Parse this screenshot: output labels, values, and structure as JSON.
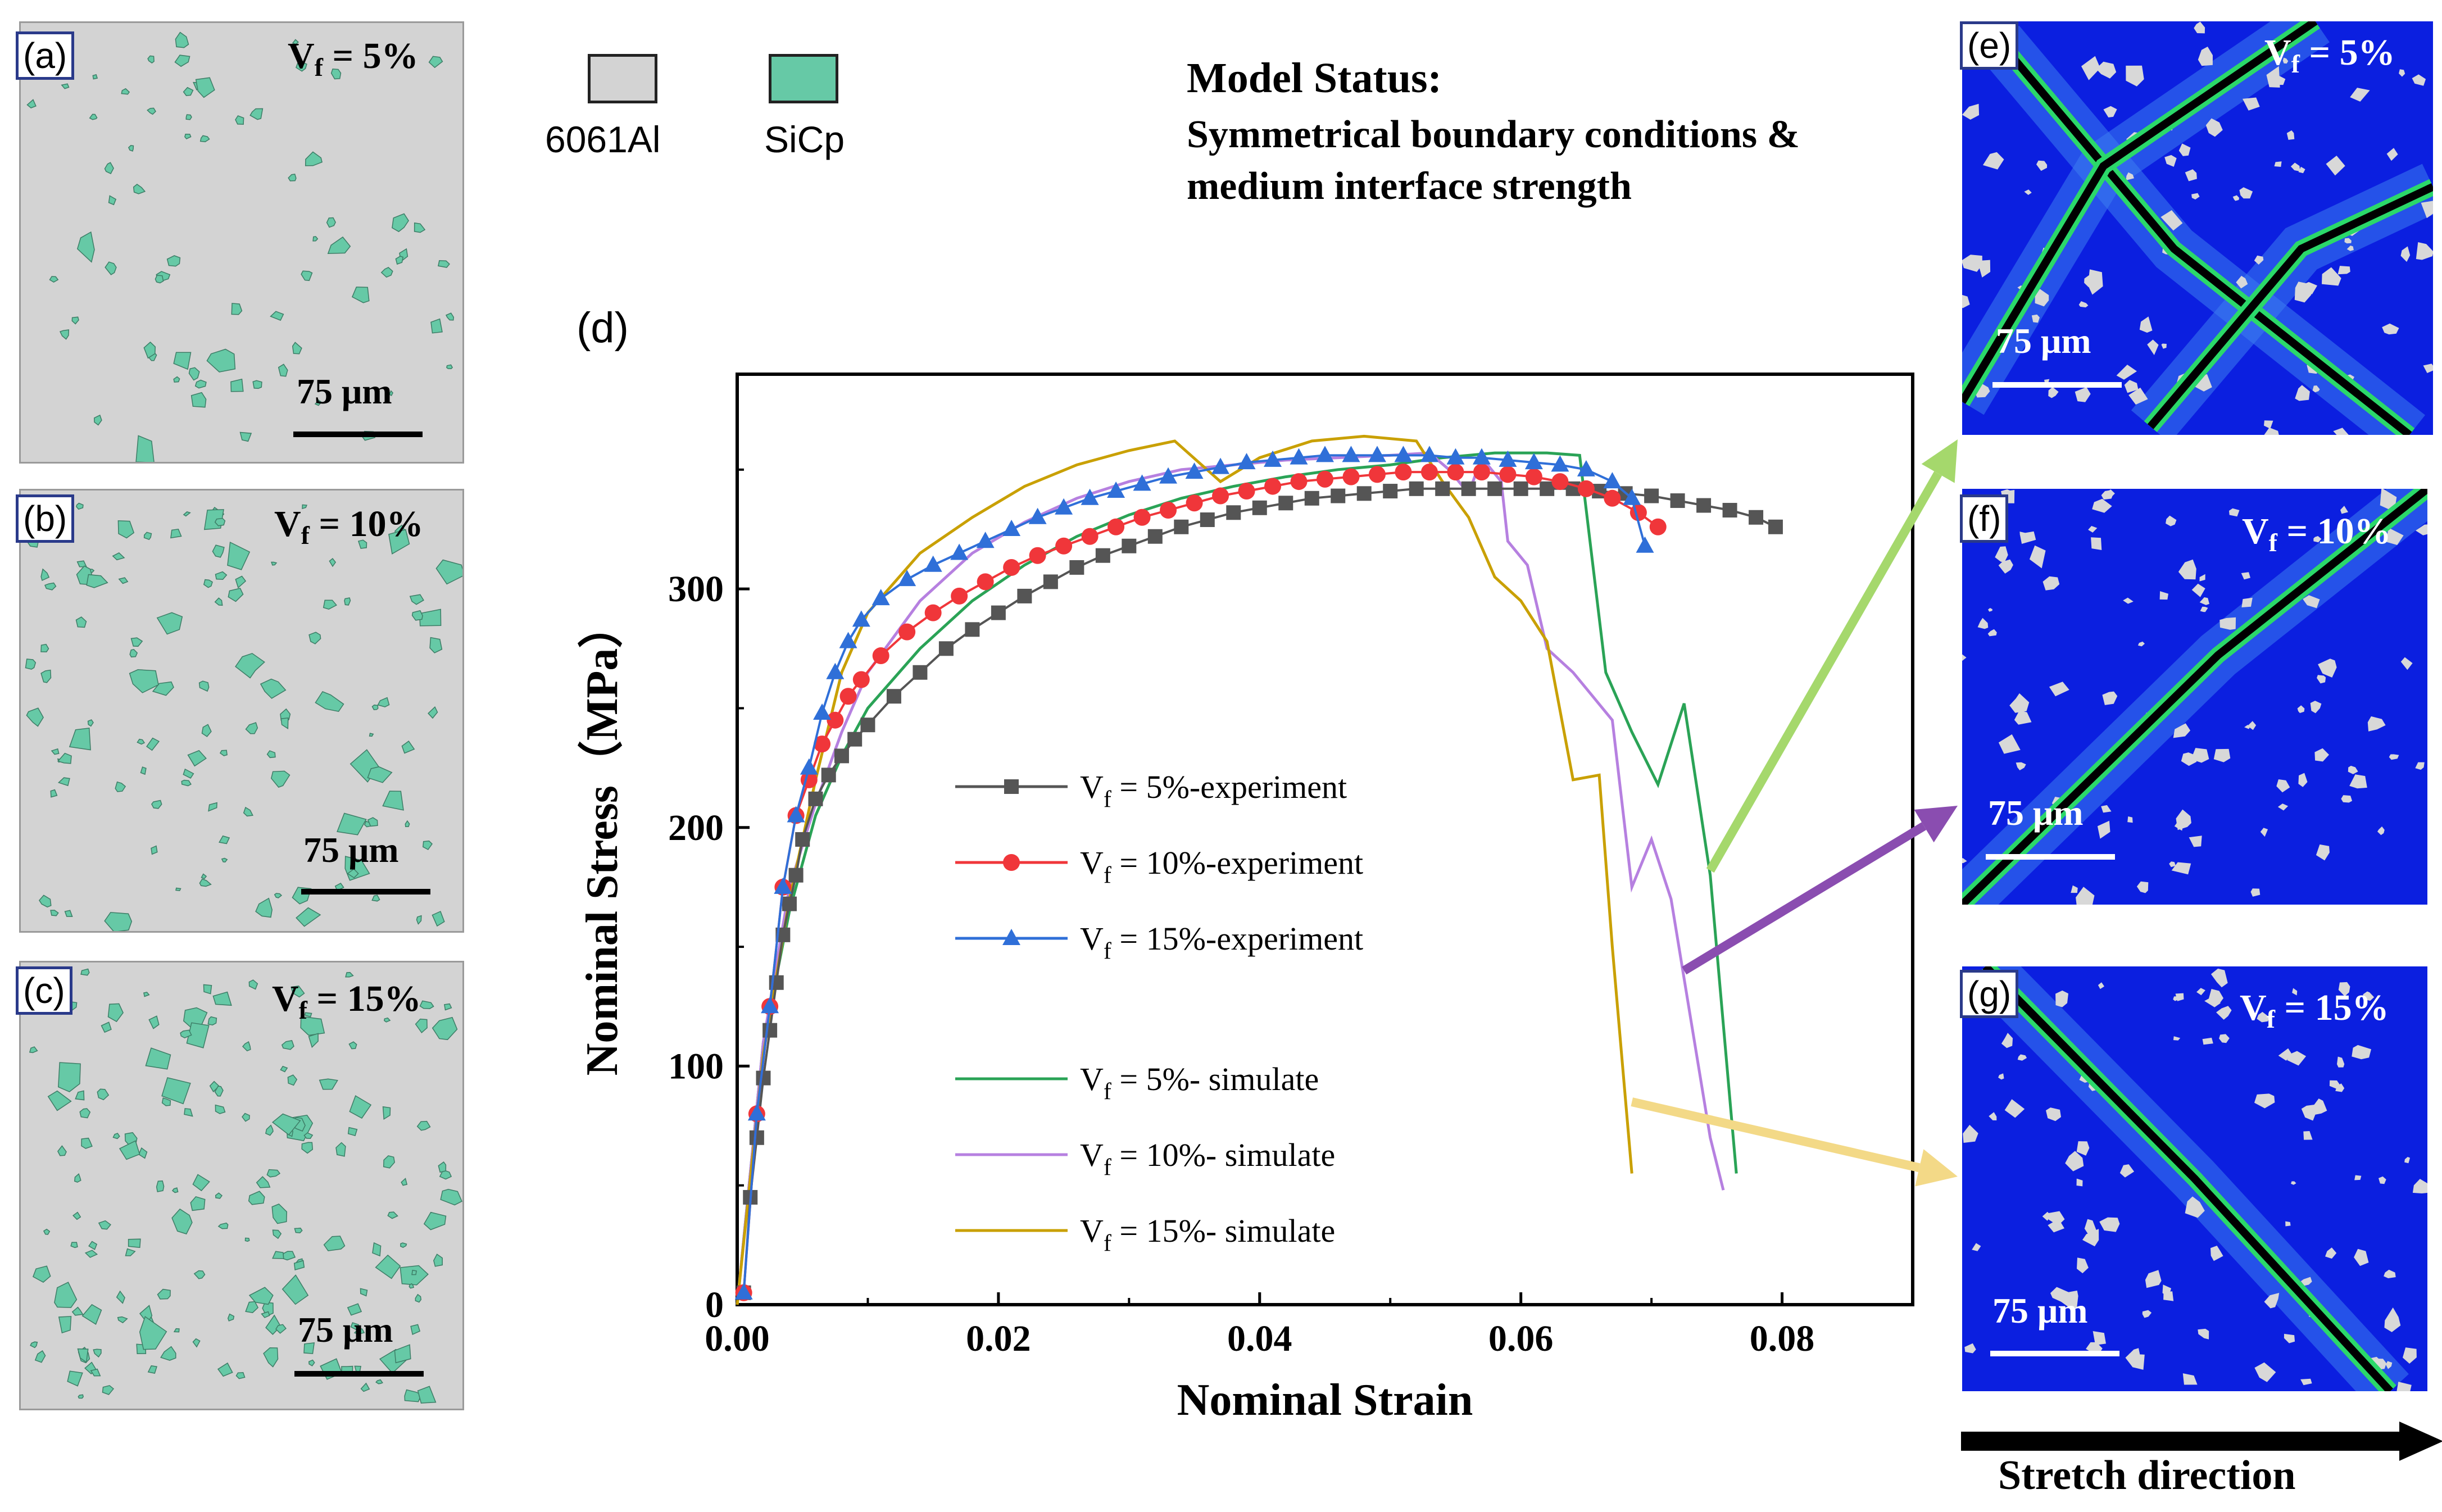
{
  "panels_left": [
    {
      "tag": "(a)",
      "vf_prefix": "V",
      "vf_sub": "f",
      "vf_suffix": " = 5%",
      "scale": "75 μm"
    },
    {
      "tag": "(b)",
      "vf_prefix": "V",
      "vf_sub": "f",
      "vf_suffix": " = 10%",
      "scale": "75 μm"
    },
    {
      "tag": "(c)",
      "vf_prefix": "V",
      "vf_sub": "f",
      "vf_suffix": " = 15%",
      "scale": "75 μm"
    }
  ],
  "panels_right": [
    {
      "tag": "(e)",
      "vf_prefix": "V",
      "vf_sub": "f",
      "vf_suffix": " = 5%",
      "scale": "75 μm"
    },
    {
      "tag": "(f)",
      "vf_prefix": "V",
      "vf_sub": "f",
      "vf_suffix": " = 10%",
      "scale": "75 μm"
    },
    {
      "tag": "(g)",
      "vf_prefix": "V",
      "vf_sub": "f",
      "vf_suffix": " = 15%",
      "scale": "75 μm"
    }
  ],
  "materials": [
    {
      "label": "6061Al",
      "color": "#d3d3d3"
    },
    {
      "label": "SiCp",
      "color": "#66c9a6"
    }
  ],
  "model_status": {
    "title": "Model Status:",
    "line1": "Symmetrical boundary conditions &",
    "line2": "medium interface strength"
  },
  "chart_tag": "(d)",
  "stretch_label": "Stretch direction",
  "colors": {
    "matrix": "#d3d3d3",
    "particle": "#66c9a6",
    "contour_bg": "#0b1fe0",
    "exp_5": "#555555",
    "exp_10": "#f0363a",
    "exp_15": "#2f6fd8",
    "sim_5": "#2aa356",
    "sim_10": "#b680e0",
    "sim_15": "#c9a000",
    "arrow_green": "#a5d86c",
    "arrow_purple": "#8a4db0",
    "arrow_yellow": "#f3d987"
  },
  "chart_data": {
    "type": "line",
    "xlabel": "Nominal Strain",
    "ylabel": "Nominal Stress（MPa）",
    "xlim": [
      0,
      0.09
    ],
    "ylim": [
      0,
      390
    ],
    "xticks": [
      "0.00",
      "0.02",
      "0.04",
      "0.06",
      "0.08"
    ],
    "yticks": [
      "0",
      "100",
      "200",
      "300"
    ],
    "grid": false,
    "legend_position": "center",
    "series": [
      {
        "name": "= 5%-experiment",
        "legend_sub": "f",
        "style": "marker-square",
        "color": "#555555",
        "x": [
          0.0005,
          0.001,
          0.0015,
          0.002,
          0.0025,
          0.003,
          0.0035,
          0.004,
          0.0045,
          0.005,
          0.006,
          0.007,
          0.008,
          0.009,
          0.01,
          0.012,
          0.014,
          0.016,
          0.018,
          0.02,
          0.022,
          0.024,
          0.026,
          0.028,
          0.03,
          0.032,
          0.034,
          0.036,
          0.038,
          0.04,
          0.042,
          0.044,
          0.046,
          0.048,
          0.05,
          0.052,
          0.054,
          0.056,
          0.058,
          0.06,
          0.062,
          0.064,
          0.066,
          0.068,
          0.07,
          0.072,
          0.074,
          0.076,
          0.078,
          0.0795
        ],
        "y": [
          5,
          45,
          70,
          95,
          115,
          135,
          155,
          168,
          180,
          195,
          212,
          222,
          230,
          237,
          243,
          255,
          265,
          275,
          283,
          290,
          297,
          303,
          309,
          314,
          318,
          322,
          326,
          329,
          332,
          334,
          336,
          338,
          339,
          340,
          341,
          342,
          342,
          342,
          342,
          342,
          342,
          342,
          341,
          340,
          339,
          337,
          335,
          333,
          330,
          326
        ]
      },
      {
        "name": "= 10%-experiment",
        "legend_sub": "f",
        "style": "marker-circle",
        "color": "#f0363a",
        "x": [
          0.0005,
          0.0015,
          0.0025,
          0.0035,
          0.0045,
          0.0055,
          0.0065,
          0.0075,
          0.0085,
          0.0095,
          0.011,
          0.013,
          0.015,
          0.017,
          0.019,
          0.021,
          0.023,
          0.025,
          0.027,
          0.029,
          0.031,
          0.033,
          0.035,
          0.037,
          0.039,
          0.041,
          0.043,
          0.045,
          0.047,
          0.049,
          0.051,
          0.053,
          0.055,
          0.057,
          0.059,
          0.061,
          0.063,
          0.065,
          0.067,
          0.069,
          0.0705
        ],
        "y": [
          5,
          80,
          125,
          175,
          205,
          220,
          235,
          245,
          255,
          262,
          272,
          282,
          290,
          297,
          303,
          309,
          314,
          318,
          322,
          326,
          330,
          333,
          336,
          339,
          341,
          343,
          345,
          346,
          347,
          348,
          349,
          349,
          349,
          349,
          348,
          347,
          345,
          342,
          338,
          332,
          326
        ]
      },
      {
        "name": "= 15%-experiment",
        "legend_sub": "f",
        "style": "marker-triangle",
        "color": "#2f6fd8",
        "x": [
          0.0005,
          0.0015,
          0.0025,
          0.0035,
          0.0045,
          0.0055,
          0.0065,
          0.0075,
          0.0085,
          0.0095,
          0.011,
          0.013,
          0.015,
          0.017,
          0.019,
          0.021,
          0.023,
          0.025,
          0.027,
          0.029,
          0.031,
          0.033,
          0.035,
          0.037,
          0.039,
          0.041,
          0.043,
          0.045,
          0.047,
          0.049,
          0.051,
          0.053,
          0.055,
          0.057,
          0.059,
          0.061,
          0.063,
          0.065,
          0.067,
          0.0685,
          0.0695
        ],
        "y": [
          5,
          80,
          125,
          175,
          205,
          225,
          248,
          265,
          278,
          287,
          296,
          304,
          310,
          315,
          320,
          325,
          330,
          334,
          338,
          341,
          344,
          347,
          349,
          351,
          353,
          354,
          355,
          356,
          356,
          356,
          356,
          356,
          355,
          355,
          354,
          353,
          352,
          350,
          345,
          338,
          318
        ]
      },
      {
        "name": "= 5%- simulate",
        "legend_sub": "f",
        "style": "line",
        "color": "#2aa356",
        "x": [
          0,
          0.002,
          0.004,
          0.006,
          0.008,
          0.01,
          0.014,
          0.018,
          0.022,
          0.026,
          0.03,
          0.034,
          0.038,
          0.042,
          0.046,
          0.05,
          0.054,
          0.058,
          0.062,
          0.0645,
          0.0665,
          0.0685,
          0.0705,
          0.0725,
          0.0745,
          0.0765
        ],
        "y": [
          0,
          110,
          165,
          205,
          230,
          250,
          275,
          295,
          310,
          322,
          331,
          338,
          343,
          347,
          350,
          352,
          355,
          357,
          357,
          356,
          265,
          240,
          218,
          252,
          180,
          55
        ]
      },
      {
        "name": "= 10%- simulate",
        "legend_sub": "f",
        "style": "line",
        "color": "#b680e0",
        "x": [
          0,
          0.002,
          0.004,
          0.006,
          0.008,
          0.01,
          0.014,
          0.018,
          0.022,
          0.026,
          0.03,
          0.034,
          0.038,
          0.042,
          0.046,
          0.05,
          0.053,
          0.0545,
          0.056,
          0.057,
          0.0585,
          0.059,
          0.0605,
          0.062,
          0.064,
          0.0655,
          0.067,
          0.0685,
          0.07,
          0.0715,
          0.073,
          0.0745,
          0.0755
        ],
        "y": [
          0,
          110,
          175,
          210,
          240,
          265,
          295,
          315,
          328,
          338,
          345,
          350,
          352,
          354,
          355,
          356,
          357,
          350,
          340,
          355,
          345,
          320,
          310,
          275,
          265,
          255,
          245,
          175,
          195,
          170,
          120,
          70,
          48
        ]
      },
      {
        "name": "= 15%- simulate",
        "legend_sub": "f",
        "style": "line",
        "color": "#c9a000",
        "x": [
          0,
          0.002,
          0.004,
          0.006,
          0.008,
          0.01,
          0.014,
          0.018,
          0.022,
          0.026,
          0.03,
          0.0335,
          0.037,
          0.04,
          0.044,
          0.048,
          0.052,
          0.054,
          0.056,
          0.058,
          0.06,
          0.062,
          0.064,
          0.066,
          0.067,
          0.0685
        ],
        "y": [
          0,
          105,
          170,
          220,
          265,
          290,
          315,
          330,
          343,
          352,
          358,
          362,
          345,
          355,
          362,
          364,
          362,
          345,
          330,
          305,
          295,
          278,
          220,
          222,
          150,
          55
        ]
      }
    ],
    "annotation_arrows": [
      {
        "color": "#a5d86c",
        "from": [
          0.0745,
          182
        ],
        "to_panel": "(e)"
      },
      {
        "color": "#8a4db0",
        "from": [
          0.0725,
          140
        ],
        "to_panel": "(f)"
      },
      {
        "color": "#f3d987",
        "from": [
          0.0685,
          85
        ],
        "to_panel": "(g)"
      }
    ]
  }
}
